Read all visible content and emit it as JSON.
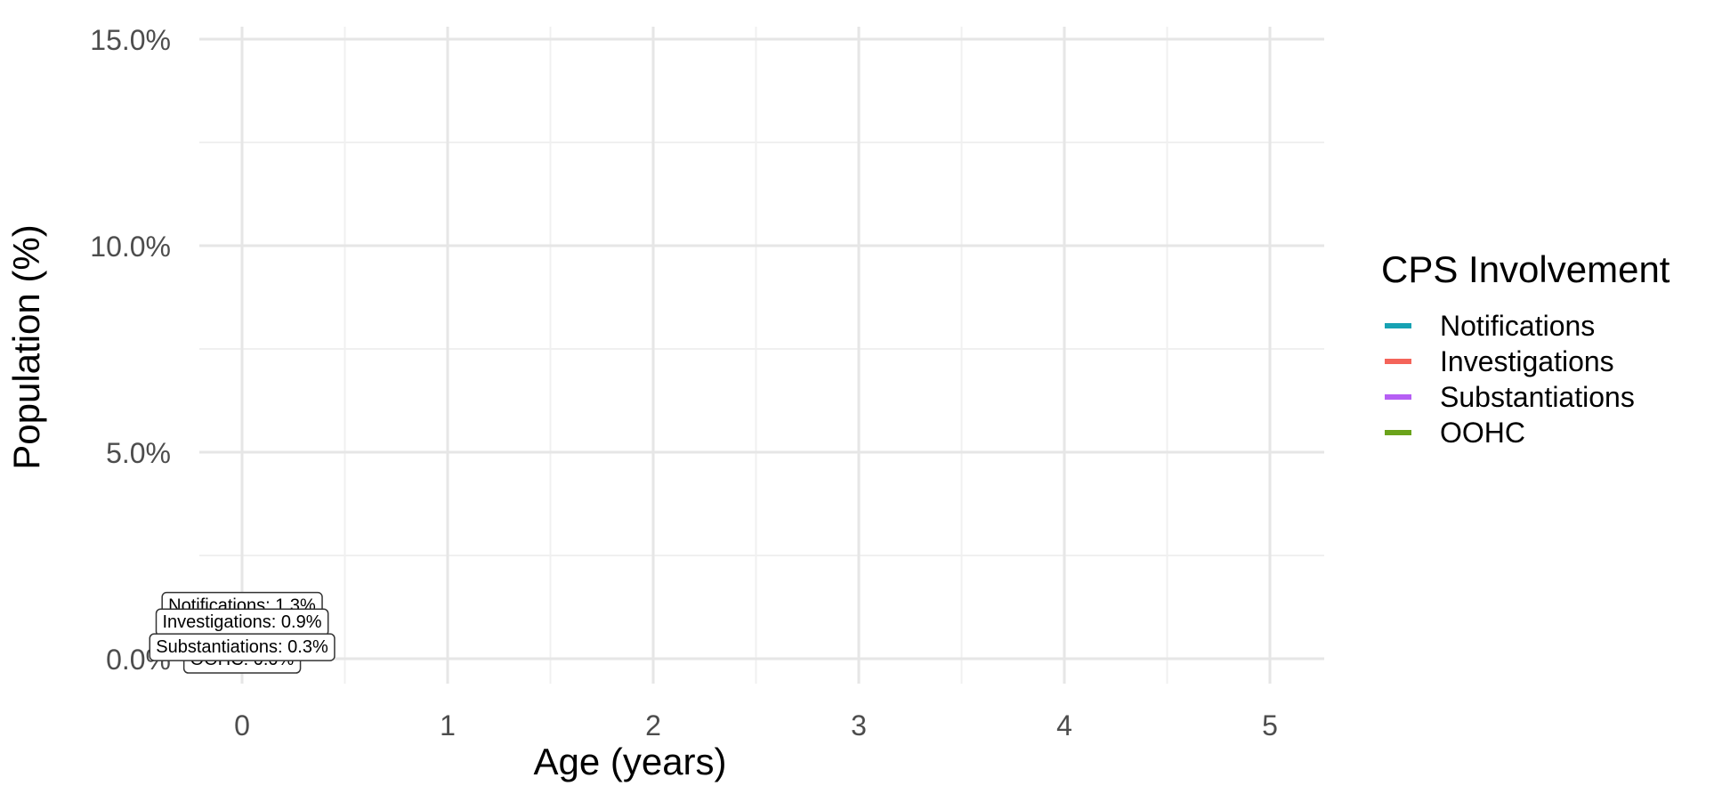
{
  "chart_data": {
    "type": "line",
    "xlabel": "Age (years)",
    "ylabel": "Population (%)",
    "xlim": [
      0,
      5
    ],
    "ylim": [
      0,
      15
    ],
    "x_ticks": [
      "0",
      "1",
      "2",
      "3",
      "4",
      "5"
    ],
    "y_ticks": [
      "0.0%",
      "5.0%",
      "10.0%",
      "15.0%"
    ],
    "grid": true,
    "legend": {
      "title": "CPS Involvement",
      "placement": "right",
      "entries": [
        "Notifications",
        "Investigations",
        "Substantiations",
        "OOHC"
      ]
    },
    "series": [
      {
        "name": "Notifications",
        "color": "#17a2b3",
        "x": [
          0
        ],
        "y": [
          1.3
        ]
      },
      {
        "name": "Investigations",
        "color": "#f4645a",
        "x": [
          0
        ],
        "y": [
          0.9
        ]
      },
      {
        "name": "Substantiations",
        "color": "#b65ff4",
        "x": [
          0
        ],
        "y": [
          0.3
        ]
      },
      {
        "name": "OOHC",
        "color": "#6ba31b",
        "x": [
          0
        ],
        "y": [
          0.0
        ]
      }
    ],
    "annotations": [
      {
        "series": "Notifications",
        "text": "Notifications:  1.3%",
        "x": 0,
        "y": 1.3
      },
      {
        "series": "Investigations",
        "text": "Investigations:  0.9%",
        "x": 0,
        "y": 0.9
      },
      {
        "series": "OOHC",
        "text": "OOHC:  0.0%",
        "x": 0,
        "y": 0.0
      },
      {
        "series": "Substantiations",
        "text": "Substantiations:  0.3%",
        "x": 0,
        "y": 0.3
      }
    ]
  }
}
